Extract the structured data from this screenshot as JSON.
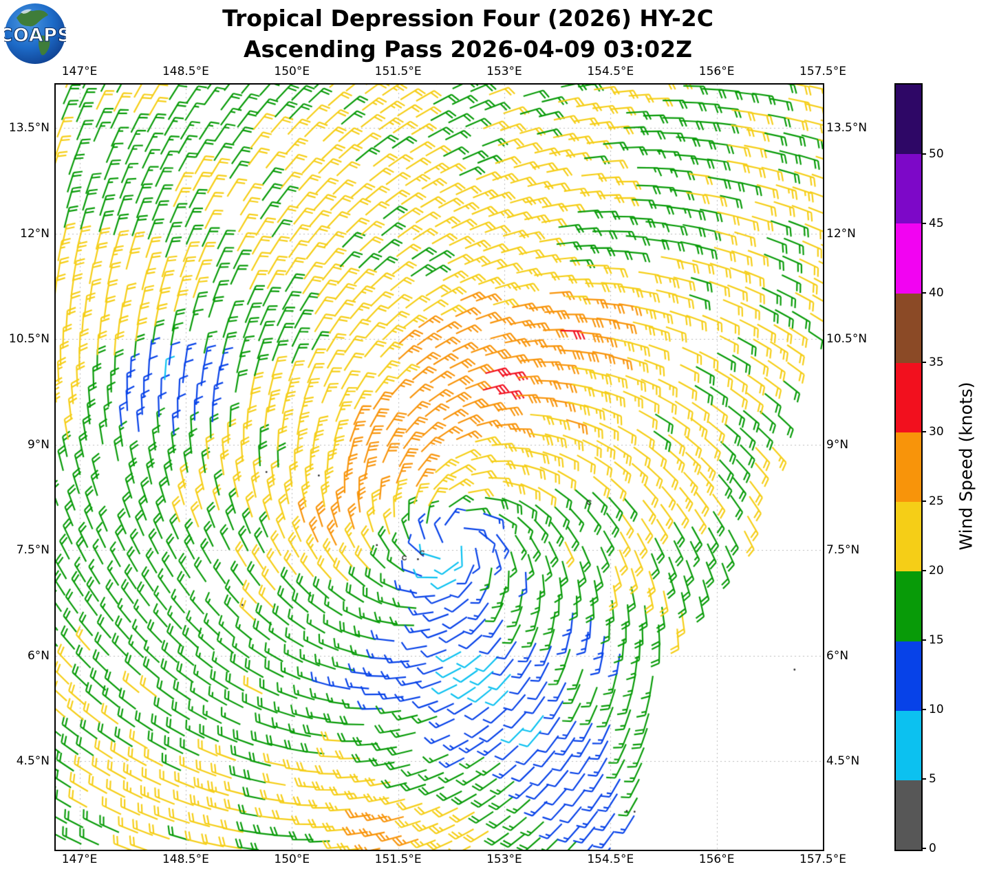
{
  "header": {
    "title_line1": "Tropical Depression Four (2026) HY-2C",
    "title_line2": "Ascending Pass 2026-04-09 03:02Z",
    "logo_text": "COAPS"
  },
  "axes": {
    "lon_ticks": [
      {
        "value": 147.0,
        "label": "147°E"
      },
      {
        "value": 148.5,
        "label": "148.5°E"
      },
      {
        "value": 150.0,
        "label": "150°E"
      },
      {
        "value": 151.5,
        "label": "151.5°E"
      },
      {
        "value": 153.0,
        "label": "153°E"
      },
      {
        "value": 154.5,
        "label": "154.5°E"
      },
      {
        "value": 156.0,
        "label": "156°E"
      },
      {
        "value": 157.5,
        "label": "157.5°E"
      }
    ],
    "lat_ticks": [
      {
        "value": 13.5,
        "label": "13.5°N"
      },
      {
        "value": 12.0,
        "label": "12°N"
      },
      {
        "value": 10.5,
        "label": "10.5°N"
      },
      {
        "value": 9.0,
        "label": "9°N"
      },
      {
        "value": 7.5,
        "label": "7.5°N"
      },
      {
        "value": 6.0,
        "label": "6°N"
      },
      {
        "value": 4.5,
        "label": "4.5°N"
      }
    ]
  },
  "colorbar": {
    "label": "Wind Speed (knots)",
    "min": 0,
    "max": 55,
    "tick_values": [
      0,
      5,
      10,
      15,
      20,
      25,
      30,
      35,
      40,
      45,
      50
    ],
    "segments": [
      {
        "from": 0,
        "to": 5,
        "color": "#575757"
      },
      {
        "from": 5,
        "to": 10,
        "color": "#0cc1f0"
      },
      {
        "from": 10,
        "to": 15,
        "color": "#0742e8"
      },
      {
        "from": 15,
        "to": 20,
        "color": "#089b08"
      },
      {
        "from": 20,
        "to": 25,
        "color": "#f5ce17"
      },
      {
        "from": 25,
        "to": 30,
        "color": "#f8940a"
      },
      {
        "from": 30,
        "to": 35,
        "color": "#f2101e"
      },
      {
        "from": 35,
        "to": 40,
        "color": "#8b4a26"
      },
      {
        "from": 40,
        "to": 45,
        "color": "#f203f2"
      },
      {
        "from": 45,
        "to": 50,
        "color": "#7d08c8"
      },
      {
        "from": 50,
        "to": 55,
        "color": "#2e0766"
      }
    ]
  },
  "chart_data": {
    "type": "wind_barb_map",
    "satellite": "HY-2C",
    "storm": "Tropical Depression Four (2026)",
    "pass_time": "2026-04-09 03:02Z",
    "projection": {
      "lon_min": 146.664,
      "lon_max": 157.5,
      "lat_min": 3.239,
      "lat_max": 14.119
    },
    "gridlines": {
      "lons": [
        147,
        148.5,
        150,
        151.5,
        153,
        154.5,
        156,
        157.5
      ],
      "lats": [
        4.5,
        6,
        7.5,
        9,
        10.5,
        12,
        13.5
      ]
    },
    "vortex": {
      "center_lon": 152.3,
      "center_lat": 7.6,
      "rotation": "counterclockwise",
      "inflow_deg": 25,
      "background_speed_kt": 21,
      "eye_dip_kt": 7,
      "eye_radius_deg": 0.5
    },
    "speed_anomalies": [
      {
        "name": "ne_wind_max",
        "lon": 152.9,
        "lat": 10.15,
        "amp_kt": 8,
        "sigma_lon": 1.7,
        "sigma_lat": 0.9,
        "rot_deg": 35
      },
      {
        "name": "red_spot",
        "lon": 153.65,
        "lat": 10.7,
        "amp_kt": 4,
        "sigma_lon": 0.2,
        "sigma_lat": 0.2,
        "rot_deg": 0
      },
      {
        "name": "orange_n",
        "lon": 152.9,
        "lat": 12.25,
        "amp_kt": 3.5,
        "sigma_lon": 0.5,
        "sigma_lat": 0.35,
        "rot_deg": 0
      },
      {
        "name": "orange_w1",
        "lon": 151.3,
        "lat": 8.35,
        "amp_kt": 5.5,
        "sigma_lon": 0.38,
        "sigma_lat": 0.3,
        "rot_deg": 0
      },
      {
        "name": "orange_w2",
        "lon": 150.45,
        "lat": 7.65,
        "amp_kt": 4.5,
        "sigma_lon": 0.32,
        "sigma_lat": 0.28,
        "rot_deg": 0
      },
      {
        "name": "orange_w3",
        "lon": 151.0,
        "lat": 8.9,
        "amp_kt": 4,
        "sigma_lon": 0.35,
        "sigma_lat": 0.3,
        "rot_deg": 0
      },
      {
        "name": "orange_s",
        "lon": 151.5,
        "lat": 3.45,
        "amp_kt": 5,
        "sigma_lon": 0.5,
        "sigma_lat": 0.4,
        "rot_deg": 0
      },
      {
        "name": "nw_calm",
        "lon": 148.35,
        "lat": 9.75,
        "amp_kt": -9,
        "sigma_lon": 1.0,
        "sigma_lat": 0.5,
        "rot_deg": 40
      },
      {
        "name": "nw_calm_core",
        "lon": 148.2,
        "lat": 9.9,
        "amp_kt": -3.5,
        "sigma_lon": 0.32,
        "sigma_lat": 0.3,
        "rot_deg": 0
      },
      {
        "name": "s_calm",
        "lon": 152.7,
        "lat": 6.0,
        "amp_kt": -8.2,
        "sigma_lon": 1.05,
        "sigma_lat": 0.95,
        "rot_deg": 0
      },
      {
        "name": "se_calm",
        "lon": 153.9,
        "lat": 4.6,
        "amp_kt": -7,
        "sigma_lon": 0.85,
        "sigma_lat": 0.7,
        "rot_deg": 0
      },
      {
        "name": "se_calm2",
        "lon": 154.45,
        "lat": 3.6,
        "amp_kt": -6,
        "sigma_lon": 0.6,
        "sigma_lat": 0.6,
        "rot_deg": 0
      },
      {
        "name": "cyan_spot_se",
        "lon": 154.75,
        "lat": 5.95,
        "amp_kt": -4.5,
        "sigma_lon": 0.45,
        "sigma_lat": 0.3,
        "rot_deg": -35
      },
      {
        "name": "green_w",
        "lon": 147.9,
        "lat": 6.5,
        "amp_kt": -3.5,
        "sigma_lon": 1.4,
        "sigma_lat": 1.1,
        "rot_deg": 0
      },
      {
        "name": "green_s",
        "lon": 151.3,
        "lat": 5.6,
        "amp_kt": -3,
        "sigma_lon": 1.6,
        "sigma_lat": 0.9,
        "rot_deg": 0
      },
      {
        "name": "green_ne",
        "lon": 154.9,
        "lat": 12.3,
        "amp_kt": -3,
        "sigma_lon": 1.3,
        "sigma_lat": 1.0,
        "rot_deg": 0
      },
      {
        "name": "green_nw",
        "lon": 147.7,
        "lat": 13.1,
        "amp_kt": -2.5,
        "sigma_lon": 0.9,
        "sigma_lat": 0.9,
        "rot_deg": 0
      },
      {
        "name": "green_e",
        "lon": 155.7,
        "lat": 7.4,
        "amp_kt": -3,
        "sigma_lon": 0.6,
        "sigma_lat": 0.5,
        "rot_deg": 0
      },
      {
        "name": "green_ring_e",
        "lon": 153.3,
        "lat": 8.4,
        "amp_kt": -2.5,
        "sigma_lon": 0.7,
        "sigma_lat": 0.6,
        "rot_deg": 0
      },
      {
        "name": "green_n2",
        "lon": 153.6,
        "lat": 11.85,
        "amp_kt": -2.5,
        "sigma_lon": 0.6,
        "sigma_lat": 0.4,
        "rot_deg": 0
      }
    ],
    "noise": {
      "amp_kt": 2.6,
      "scale_deg": 0.55,
      "amp2_kt": 1.2,
      "scale2_deg": 0.27,
      "seed": 7
    },
    "sampling": {
      "spacing_deg": 0.247,
      "row_tilt_deg": -8,
      "jitter_deg": 0.05,
      "dropout": 0.03,
      "origin_lon": 146.2,
      "origin_lat": 2.7
    },
    "swath_edge_lon_by_lat": [
      [
        3.0,
        154.68
      ],
      [
        4.5,
        155.0
      ],
      [
        6.0,
        155.3
      ],
      [
        7.0,
        155.85
      ],
      [
        7.6,
        156.35
      ],
      [
        9.0,
        156.85
      ],
      [
        9.8,
        156.95
      ],
      [
        10.5,
        157.25
      ],
      [
        11.2,
        157.6
      ],
      [
        14.2,
        157.9
      ]
    ],
    "barb_convention": {
      "half_barb_kt": 5,
      "full_barb_kt": 10,
      "hemisphere": "north"
    },
    "islands": [
      {
        "lon": 151.59,
        "lat": 7.39,
        "type": "ring"
      },
      {
        "lon": 151.84,
        "lat": 7.46,
        "type": "ring"
      },
      {
        "lon": 151.78,
        "lat": 7.37,
        "type": "dot"
      },
      {
        "lon": 151.2,
        "lat": 7.57,
        "type": "dot"
      },
      {
        "lon": 149.64,
        "lat": 8.61,
        "type": "dot"
      },
      {
        "lon": 150.38,
        "lat": 8.56,
        "type": "dot"
      },
      {
        "lon": 154.2,
        "lat": 8.18,
        "type": "ring"
      },
      {
        "lon": 157.1,
        "lat": 5.8,
        "type": "dot"
      },
      {
        "lon": 154.73,
        "lat": 3.79,
        "type": "dot"
      },
      {
        "lon": 154.84,
        "lat": 3.78,
        "type": "dot"
      },
      {
        "lon": 149.3,
        "lat": 6.72,
        "type": "dot"
      }
    ],
    "grid_color": "#b9b9b9",
    "frame_color": "#000000"
  }
}
